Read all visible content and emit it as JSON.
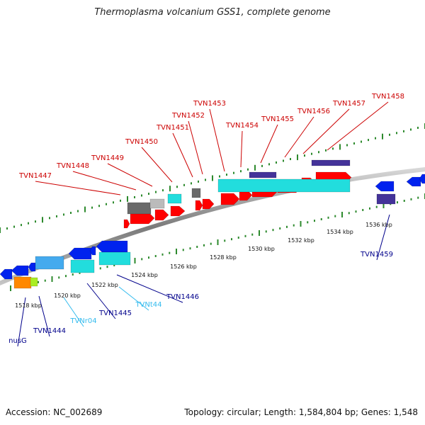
{
  "title": "Thermoplasma volcanium GSS1, complete genome",
  "footer": {
    "accession": "Accession: NC_002689",
    "summary": "Topology: circular; Length: 1,584,804 bp; Genes: 1,548"
  },
  "colors": {
    "forward_label": "#cc0000",
    "reverse_label": "#00008b",
    "rna_label": "#33bbee",
    "backbone": "#8a8a8a",
    "tick_green": "#2d8a2d",
    "cds_red": "#ff0000",
    "cds_blue": "#0022ee",
    "cyan": "#22dddd",
    "gray": "#6a6a6a",
    "navy": "#443399",
    "orange": "#ff8800",
    "lime": "#aaee22"
  },
  "scale_labels": [
    "1518 kbp",
    "1520 kbp",
    "1522 kbp",
    "1524 kbp",
    "1526 kbp",
    "1528 kbp",
    "1530 kbp",
    "1532 kbp",
    "1534 kbp",
    "1536 kbp"
  ],
  "forward_genes": [
    "TVN1447",
    "TVN1448",
    "TVN1449",
    "TVN1450",
    "TVN1451",
    "TVN1452",
    "TVN1453",
    "TVN1454",
    "TVN1455",
    "TVN1456",
    "TVN1457",
    "TVN1458"
  ],
  "reverse_genes": [
    "nusG",
    "TVN1444",
    "TVNr04",
    "TVN1445",
    "TVNt44",
    "TVN1446",
    "TVN1459"
  ]
}
